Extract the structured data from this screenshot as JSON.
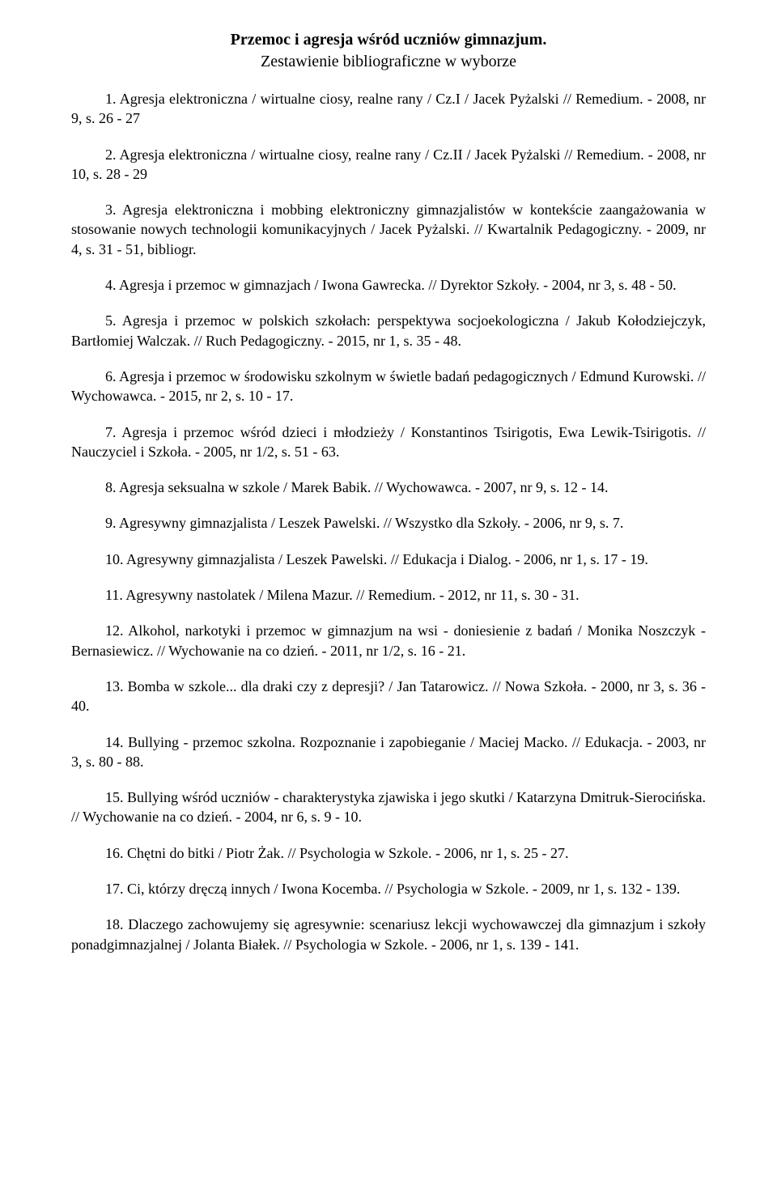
{
  "header": {
    "title": "Przemoc i agresja wśród uczniów gimnazjum.",
    "subtitle": "Zestawienie bibliograficzne w wyborze"
  },
  "entries": [
    "1. Agresja elektroniczna / wirtualne ciosy, realne rany / Cz.I / Jacek Pyżalski // Remedium. - 2008, nr 9, s. 26 - 27",
    "2. Agresja elektroniczna / wirtualne ciosy, realne rany / Cz.II / Jacek Pyżalski // Remedium. - 2008, nr 10, s. 28 - 29",
    "3. Agresja elektroniczna i mobbing elektroniczny gimnazjalistów w kontekście zaangażowania w stosowanie nowych technologii komunikacyjnych / Jacek Pyżalski. // Kwartalnik Pedagogiczny. - 2009, nr 4, s. 31 - 51, bibliogr.",
    "4. Agresja i przemoc w gimnazjach / Iwona Gawrecka. // Dyrektor Szkoły. - 2004, nr 3, s. 48 - 50.",
    "5. Agresja i przemoc w polskich szkołach: perspektywa socjoekologiczna / Jakub Kołodziejczyk, Bartłomiej Walczak. // Ruch Pedagogiczny. - 2015, nr 1, s. 35 - 48.",
    "6. Agresja i przemoc w środowisku szkolnym w świetle badań pedagogicznych / Edmund Kurowski. // Wychowawca. - 2015, nr 2, s. 10 - 17.",
    "7. Agresja i przemoc wśród dzieci i młodzieży / Konstantinos Tsirigotis, Ewa Lewik-Tsirigotis. // Nauczyciel i Szkoła. - 2005, nr 1/2, s. 51 - 63.",
    "8. Agresja seksualna w szkole / Marek Babik. // Wychowawca. - 2007, nr 9, s. 12 - 14.",
    "9. Agresywny gimnazjalista / Leszek Pawelski. // Wszystko dla Szkoły. - 2006, nr 9, s. 7.",
    "10. Agresywny gimnazjalista / Leszek Pawelski. // Edukacja i Dialog. - 2006, nr 1, s. 17 - 19.",
    "11. Agresywny nastolatek / Milena Mazur. // Remedium. - 2012, nr 11, s. 30 - 31.",
    "12. Alkohol, narkotyki i przemoc w gimnazjum na wsi - doniesienie z badań / Monika Noszczyk - Bernasiewicz. // Wychowanie na co dzień. - 2011, nr 1/2, s. 16 - 21.",
    "13. Bomba w szkole... dla draki czy z depresji? / Jan Tatarowicz. // Nowa Szkoła. - 2000, nr 3, s. 36 - 40.",
    "14. Bullying - przemoc szkolna. Rozpoznanie i zapobieganie / Maciej Macko. // Edukacja. - 2003, nr 3, s. 80 - 88.",
    "15. Bullying wśród uczniów - charakterystyka zjawiska i jego skutki / Katarzyna Dmitruk-Sierocińska. // Wychowanie na co dzień. - 2004, nr 6, s. 9 - 10.",
    "16. Chętni do bitki / Piotr Żak. // Psychologia w Szkole. - 2006, nr 1, s. 25 - 27.",
    "17. Ci, którzy dręczą innych / Iwona Kocemba. // Psychologia w Szkole. - 2009, nr 1, s. 132 - 139.",
    "18. Dlaczego zachowujemy się agresywnie: scenariusz lekcji wychowawczej dla gimnazjum i szkoły ponadgimnazjalnej / Jolanta Białek. // Psychologia w Szkole. - 2006, nr 1, s. 139 - 141."
  ]
}
